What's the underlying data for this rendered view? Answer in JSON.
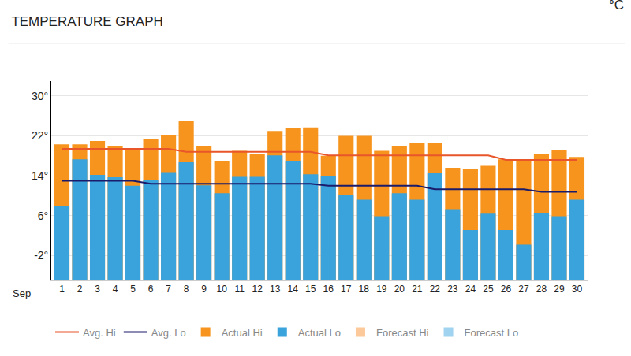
{
  "chart_data": {
    "type": "bar",
    "title": "TEMPERATURE GRAPH",
    "annotations": [
      "°C",
      "Sep"
    ],
    "categories": [
      "1",
      "2",
      "3",
      "4",
      "5",
      "6",
      "7",
      "8",
      "9",
      "10",
      "11",
      "12",
      "13",
      "14",
      "15",
      "16",
      "17",
      "18",
      "19",
      "20",
      "21",
      "22",
      "23",
      "24",
      "25",
      "26",
      "27",
      "28",
      "29",
      "30"
    ],
    "series": [
      {
        "name": "Avg. Hi",
        "type": "line",
        "color": "#e8562a",
        "values": [
          19.4,
          19.4,
          19.4,
          19.4,
          19.4,
          19.4,
          19.4,
          18.8,
          18.8,
          18.8,
          18.8,
          18.8,
          18.8,
          18.8,
          18.8,
          18.1,
          18.1,
          18.1,
          18.1,
          18.1,
          18.1,
          18.1,
          18.1,
          18.1,
          18.1,
          17.2,
          17.2,
          17.2,
          17.2,
          17.2
        ]
      },
      {
        "name": "Avg. Lo",
        "type": "line",
        "color": "#1b1b6b",
        "values": [
          13,
          13,
          13,
          13,
          13,
          12.4,
          12.4,
          12.4,
          12.4,
          12.4,
          12.4,
          12.4,
          12.4,
          12.4,
          12.4,
          12,
          12,
          12,
          12,
          12,
          12,
          11.3,
          11.3,
          11.3,
          11.3,
          11.3,
          11.3,
          10.8,
          10.8,
          10.8
        ]
      },
      {
        "name": "Actual Hi",
        "type": "bar",
        "color": "#f7941d",
        "values": [
          20.3,
          20.3,
          21,
          20,
          19.4,
          21.4,
          22.2,
          25,
          20,
          17,
          19,
          18.3,
          23,
          23.5,
          23.7,
          18,
          22,
          22,
          19,
          20,
          20.5,
          20.5,
          15.6,
          15.4,
          16,
          17.3,
          17.3,
          18.3,
          19.2,
          17.8
        ]
      },
      {
        "name": "Actual Lo",
        "type": "bar",
        "color": "#3aa3dc",
        "values": [
          8,
          17.3,
          14.2,
          13.7,
          12,
          13.2,
          14.6,
          16.7,
          12.1,
          10.5,
          13.8,
          13.8,
          18.1,
          17,
          14.3,
          14,
          10.2,
          9.2,
          5.9,
          10.5,
          9.2,
          14.5,
          7.3,
          3.1,
          6.4,
          3.1,
          0.2,
          6.6,
          5.9,
          9.2
        ]
      },
      {
        "name": "Forecast Hi",
        "type": "bar",
        "color": "#fbc99a",
        "values": [
          null,
          null,
          null,
          null,
          null,
          null,
          null,
          null,
          null,
          null,
          null,
          null,
          null,
          null,
          null,
          null,
          null,
          null,
          null,
          null,
          null,
          null,
          null,
          null,
          null,
          null,
          null,
          null,
          null,
          null
        ]
      },
      {
        "name": "Forecast Lo",
        "type": "bar",
        "color": "#9fd3f0",
        "values": [
          null,
          null,
          null,
          null,
          null,
          null,
          null,
          null,
          null,
          null,
          null,
          null,
          null,
          null,
          null,
          null,
          null,
          null,
          null,
          null,
          null,
          null,
          null,
          null,
          null,
          null,
          null,
          null,
          null,
          null
        ]
      }
    ],
    "ylim": [
      -7,
      33
    ],
    "yticks": [
      {
        "value": -2,
        "label": "-2°"
      },
      {
        "value": 6,
        "label": "6°"
      },
      {
        "value": 14,
        "label": "14°"
      },
      {
        "value": 22,
        "label": "22°"
      },
      {
        "value": 30,
        "label": "30°"
      }
    ],
    "grid": true,
    "legend": "bottom"
  }
}
